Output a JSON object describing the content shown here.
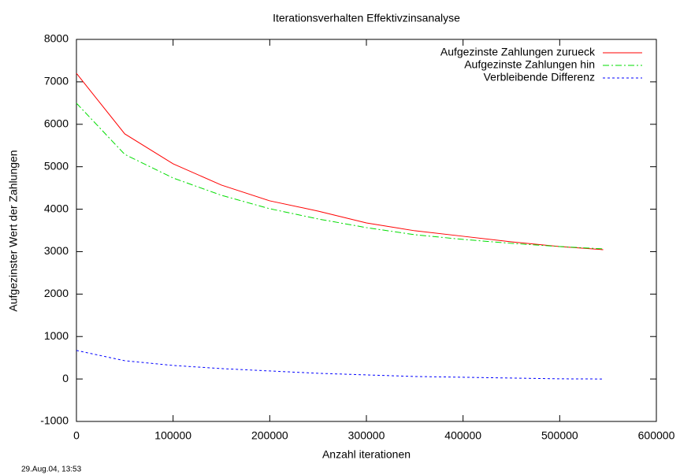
{
  "chart_data": {
    "type": "line",
    "title": "Iterationsverhalten Effektivzinsanalyse",
    "x_label": "Anzahl iterationen",
    "y_label": "Aufgezinster Wert der Zahlungen",
    "timestamp": "29.Aug.04, 13:53",
    "x": [
      0,
      50000,
      100000,
      150000,
      200000,
      250000,
      300000,
      350000,
      400000,
      450000,
      500000,
      545000
    ],
    "series": [
      {
        "name": "Aufgezinste Zahlungen zurueck",
        "color": "#ff0000",
        "dash": "none",
        "values": [
          7200,
          5774,
          5069,
          4568,
          4197,
          3955,
          3677,
          3492,
          3362,
          3232,
          3120,
          3046
        ]
      },
      {
        "name": "Aufgezinste Zahlungen hin",
        "color": "#00dd00",
        "dash": "8 3 2 3",
        "values": [
          6497,
          5291,
          4735,
          4327,
          4011,
          3770,
          3566,
          3399,
          3288,
          3195,
          3120,
          3065
        ]
      },
      {
        "name": "Verbleibende Differenz",
        "color": "#0000ff",
        "dash": "3 3",
        "values": [
          672,
          430,
          319,
          245,
          189,
          134,
          96,
          59,
          41,
          22,
          4,
          0
        ]
      }
    ],
    "xlim": [
      0,
      600000
    ],
    "xticks": [
      0,
      100000,
      200000,
      300000,
      400000,
      500000,
      600000
    ],
    "ylim": [
      -1000,
      8000
    ],
    "yticks": [
      -1000,
      0,
      1000,
      2000,
      3000,
      4000,
      5000,
      6000,
      7000,
      8000
    ],
    "grid": false,
    "legend": "top-right"
  }
}
